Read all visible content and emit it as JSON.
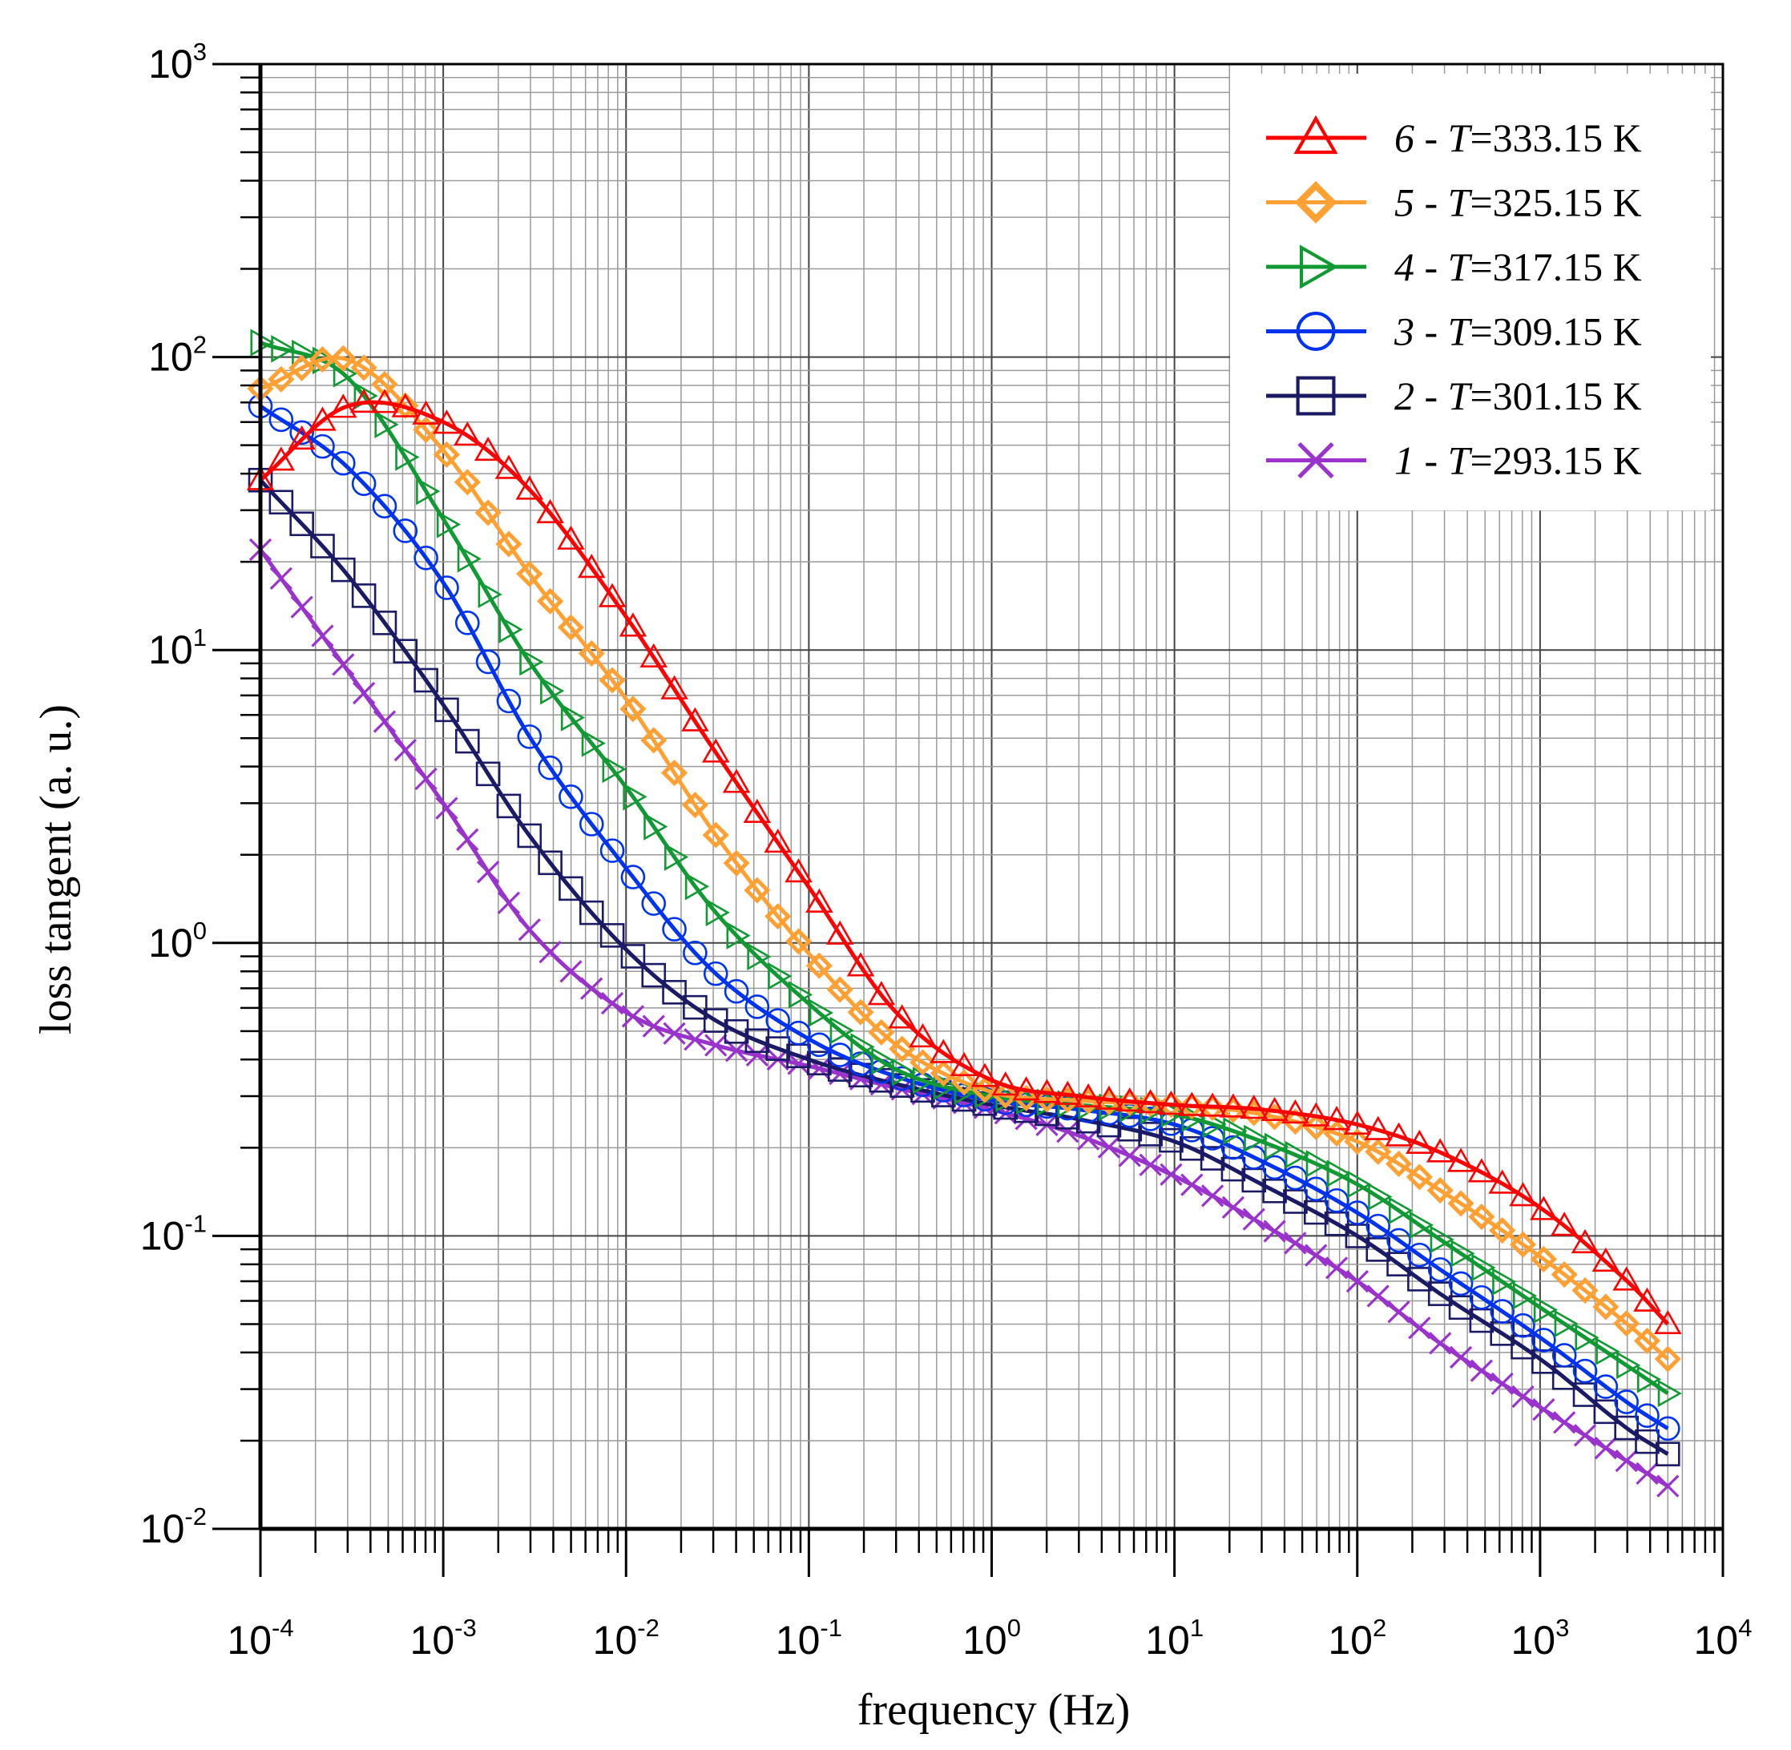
{
  "chart_data": {
    "type": "line",
    "xscale": "log",
    "yscale": "log",
    "xlabel": "frequency (Hz)",
    "ylabel": "loss tangent  (a. u.)",
    "xlim": [
      0.0001,
      10000
    ],
    "ylim": [
      0.01,
      1000
    ],
    "x_ticks": [
      {
        "base": "10",
        "exp": "-4"
      },
      {
        "base": "10",
        "exp": "-3"
      },
      {
        "base": "10",
        "exp": "-2"
      },
      {
        "base": "10",
        "exp": "-1"
      },
      {
        "base": "10",
        "exp": "0"
      },
      {
        "base": "10",
        "exp": "1"
      },
      {
        "base": "10",
        "exp": "2"
      },
      {
        "base": "10",
        "exp": "3"
      },
      {
        "base": "10",
        "exp": "4"
      }
    ],
    "y_ticks": [
      {
        "base": "10",
        "exp": "-2"
      },
      {
        "base": "10",
        "exp": "-1"
      },
      {
        "base": "10",
        "exp": "0"
      },
      {
        "base": "10",
        "exp": "1"
      },
      {
        "base": "10",
        "exp": "2"
      },
      {
        "base": "10",
        "exp": "3"
      }
    ],
    "grid": true,
    "legend_position": "top-right",
    "x": [
      0.0001,
      0.0003,
      0.001,
      0.003,
      0.01,
      0.03,
      0.1,
      0.3,
      1,
      3,
      10,
      30,
      100,
      300,
      1000,
      3000,
      5000
    ],
    "series": [
      {
        "name": "6 - T=333.15 K",
        "num": "6",
        "temp": "=333.15 K",
        "color": "#ff0000",
        "marker": "triangle-up",
        "values": [
          38,
          68,
          60,
          35,
          13,
          4.6,
          1.55,
          0.58,
          0.34,
          0.3,
          0.28,
          0.27,
          0.24,
          0.19,
          0.125,
          0.07,
          0.05
        ]
      },
      {
        "name": "5 - T=325.15 K",
        "num": "5",
        "temp": "=325.15 K",
        "color": "#ffa033",
        "marker": "diamond",
        "values": [
          78,
          98,
          48,
          18,
          6.8,
          2.4,
          0.92,
          0.45,
          0.31,
          0.29,
          0.28,
          0.26,
          0.21,
          0.14,
          0.085,
          0.05,
          0.038
        ]
      },
      {
        "name": "4 - T=317.15 K",
        "num": "4",
        "temp": "=317.15 K",
        "color": "#119933",
        "marker": "triangle-right",
        "values": [
          112,
          85,
          28,
          9,
          3.4,
          1.3,
          0.62,
          0.37,
          0.3,
          0.28,
          0.26,
          0.21,
          0.15,
          0.095,
          0.057,
          0.036,
          0.029
        ]
      },
      {
        "name": "3 - T=309.15 K",
        "num": "3",
        "temp": "=309.15 K",
        "color": "#0033ee",
        "marker": "circle",
        "values": [
          68,
          42,
          17,
          5,
          1.8,
          0.8,
          0.47,
          0.35,
          0.29,
          0.27,
          0.24,
          0.18,
          0.12,
          0.075,
          0.045,
          0.027,
          0.022
        ]
      },
      {
        "name": "2 - T=301.15 K",
        "num": "2",
        "temp": "=301.15 K",
        "color": "#1a1a66",
        "marker": "square",
        "values": [
          38,
          18,
          6.5,
          2.3,
          0.95,
          0.55,
          0.4,
          0.33,
          0.28,
          0.25,
          0.21,
          0.15,
          0.1,
          0.062,
          0.038,
          0.022,
          0.018
        ]
      },
      {
        "name": "1 - T=293.15 K",
        "num": "1",
        "temp": "=293.15 K",
        "color": "#9933cc",
        "marker": "x",
        "values": [
          22,
          8.5,
          3,
          1.1,
          0.58,
          0.45,
          0.38,
          0.32,
          0.27,
          0.22,
          0.16,
          0.11,
          0.07,
          0.042,
          0.026,
          0.017,
          0.014
        ]
      }
    ]
  }
}
